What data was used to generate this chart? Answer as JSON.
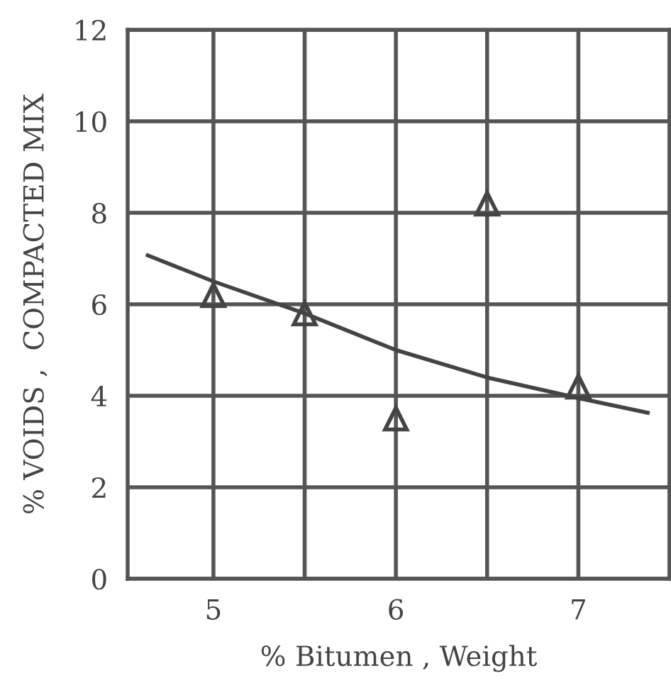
{
  "chart_data": {
    "type": "scatter",
    "xlabel": "% Bitumen , Weight",
    "ylabel": "% VOIDS ,  COMPACTED MIX",
    "xlim": [
      4.53,
      7.5
    ],
    "ylim": [
      0,
      12
    ],
    "xticks": [
      5,
      {
        "value": 5.5,
        "label": null
      },
      6,
      {
        "value": 6.5,
        "label": null
      },
      7,
      {
        "value": 7.5,
        "label": null
      }
    ],
    "yticks": [
      0,
      2,
      4,
      6,
      8,
      10,
      12
    ],
    "grid": true,
    "series": [
      {
        "marker": "triangle",
        "color": "#444444",
        "x": [
          5,
          5.5,
          6,
          6.5,
          7
        ],
        "values": [
          6.2,
          5.8,
          3.5,
          8.2,
          4.2
        ]
      },
      {
        "type": "line",
        "marker": "none",
        "color": "#444444",
        "x": [
          4.64,
          5,
          5.5,
          6,
          6.5,
          7,
          7.38
        ],
        "values": [
          7.07,
          6.5,
          5.8,
          5.0,
          4.4,
          3.95,
          3.63
        ]
      }
    ]
  }
}
